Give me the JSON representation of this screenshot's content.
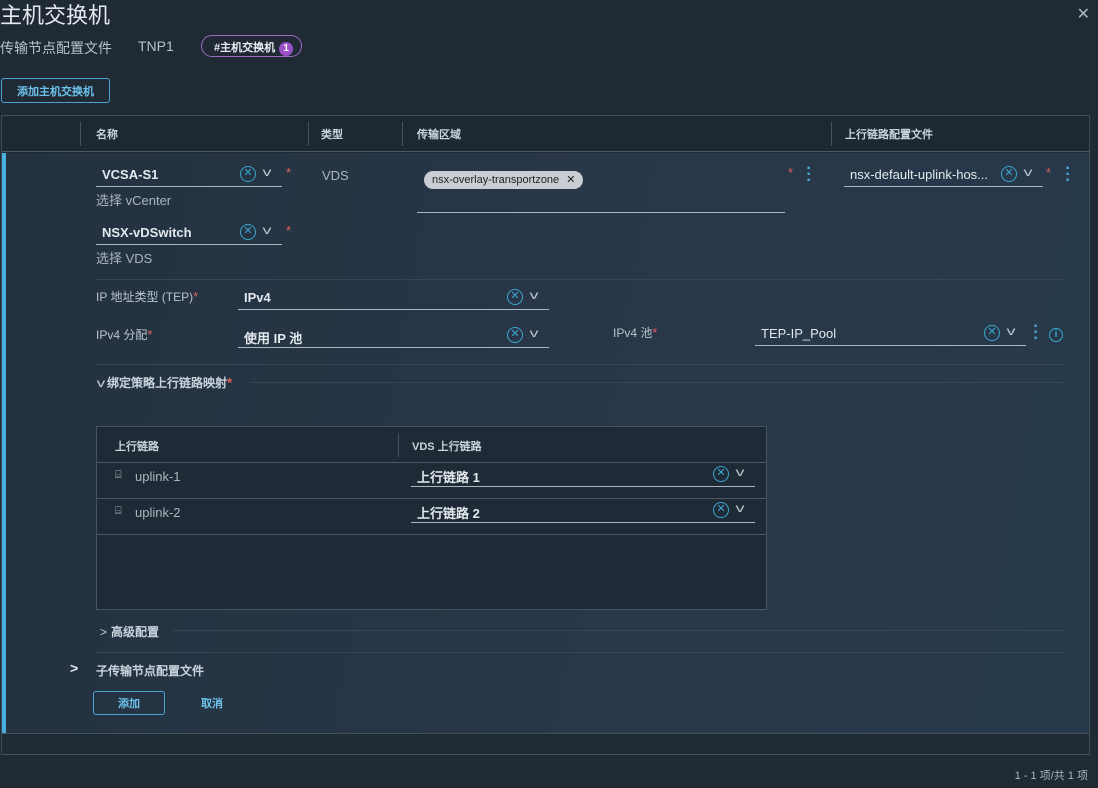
{
  "title": "主机交换机",
  "breadcrumb": {
    "label": "传输节点配置文件",
    "value": "TNP1",
    "pill": "#主机交换机",
    "pill_count": "1"
  },
  "add_switch_button": "添加主机交换机",
  "columns": [
    "名称",
    "类型",
    "传输区域",
    "上行链路配置文件"
  ],
  "row": {
    "vcenter": {
      "value": "VCSA-S1",
      "help": "选择 vCenter"
    },
    "vds": {
      "value": "NSX-vDSwitch",
      "help": "选择 VDS"
    },
    "type": "VDS",
    "transport_zone_chip": "nsx-overlay-transportzone",
    "uplink_profile": "nsx-default-uplink-hos...",
    "ip_type": {
      "label": "IP 地址类型 (TEP)",
      "value": "IPv4"
    },
    "ipv4_assign": {
      "label": "IPv4 分配",
      "value": "使用 IP 池"
    },
    "ipv4_pool": {
      "label": "IPv4 池",
      "value": "TEP-IP_Pool"
    },
    "mapping_section": "绑定策略上行链路映射",
    "mapping": {
      "headers": [
        "上行链路",
        "VDS 上行链路"
      ],
      "rows": [
        {
          "uplink": "uplink-1",
          "vds": "上行链路 1"
        },
        {
          "uplink": "uplink-2",
          "vds": "上行链路 2"
        }
      ]
    },
    "advanced": "高级配置",
    "sub_profile": "子传输节点配置文件",
    "add": "添加",
    "cancel": "取消"
  },
  "required_mark": "*",
  "footer": "1 - 1 项/共 1 项",
  "colors": {
    "accent": "#49aee0",
    "required": "#e0605a",
    "badge": "#9b4fc7"
  }
}
